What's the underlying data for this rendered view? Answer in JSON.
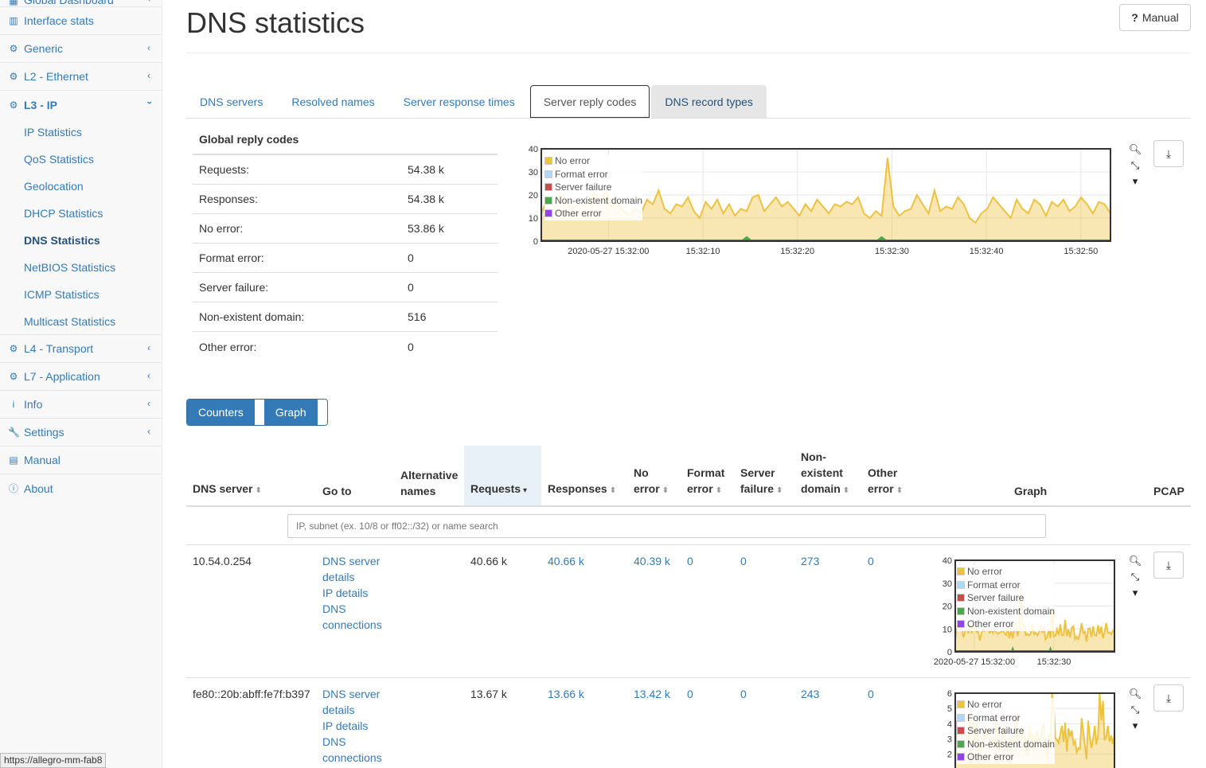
{
  "sidebar": {
    "top_partial": "Global Dashboard",
    "items": [
      {
        "label": "Interface stats",
        "icon": "bar-chart-icon"
      },
      {
        "label": "Generic",
        "icon": "gear-icon"
      },
      {
        "label": "L2 - Ethernet",
        "icon": "gear-icon"
      },
      {
        "label": "L3 - IP",
        "icon": "gear-icon"
      }
    ],
    "sub_items": [
      "IP Statistics",
      "QoS Statistics",
      "Geolocation",
      "DHCP Statistics",
      "DNS Statistics",
      "NetBIOS Statistics",
      "ICMP Statistics",
      "Multicast Statistics"
    ],
    "items_after": [
      {
        "label": "L4 - Transport",
        "icon": "gear-icon"
      },
      {
        "label": "L7 - Application",
        "icon": "gear-icon"
      },
      {
        "label": "Info",
        "icon": "info-icon"
      },
      {
        "label": "Settings",
        "icon": "wrench-icon"
      },
      {
        "label": "Manual",
        "icon": "book-icon"
      },
      {
        "label": "About",
        "icon": "info-circle-icon"
      }
    ]
  },
  "header": {
    "title": "DNS statistics",
    "manual_button": "Manual"
  },
  "tabs": [
    "DNS servers",
    "Resolved names",
    "Server response times",
    "Server reply codes",
    "DNS record types"
  ],
  "reply_codes": {
    "title": "Global reply codes",
    "rows": [
      {
        "label": "Requests:",
        "value": "54.38 k"
      },
      {
        "label": "Responses:",
        "value": "54.38 k"
      },
      {
        "label": "No error:",
        "value": "53.86 k"
      },
      {
        "label": "Format error:",
        "value": "0"
      },
      {
        "label": "Server failure:",
        "value": "0"
      },
      {
        "label": "Non-existent domain:",
        "value": "516"
      },
      {
        "label": "Other error:",
        "value": "0"
      }
    ]
  },
  "legend": [
    "No error",
    "Format error",
    "Server failure",
    "Non-existent domain",
    "Other error"
  ],
  "legend_colors": [
    "#edc240",
    "#afd8f8",
    "#cb4b4b",
    "#4da74d",
    "#9440ed"
  ],
  "main_chart": {
    "y_ticks": [
      "40",
      "30",
      "20",
      "10",
      "0"
    ],
    "x_ticks": [
      "2020-05-27 15:32:00",
      "15:32:10",
      "15:32:20",
      "15:32:30",
      "15:32:40",
      "15:32:50"
    ],
    "no_error": [
      12,
      18,
      16,
      20,
      19,
      14,
      15,
      17,
      16,
      21,
      18,
      22,
      15,
      17,
      13,
      11,
      14,
      12,
      18,
      16,
      22,
      14,
      12,
      16,
      15,
      19,
      13,
      10,
      17,
      14,
      18,
      12,
      16,
      11,
      14,
      13,
      19,
      20,
      13,
      16,
      19,
      15,
      17,
      14,
      11,
      16,
      13,
      18,
      15,
      12,
      16,
      15,
      17,
      16,
      19,
      12,
      10,
      13,
      11,
      36,
      15,
      11,
      13,
      14,
      20,
      16,
      12,
      22,
      13,
      15,
      14,
      19,
      16,
      10,
      8,
      12,
      14,
      19,
      16,
      13,
      10,
      18,
      14,
      12,
      18,
      16,
      11,
      17,
      15,
      18,
      13,
      15,
      19,
      16,
      12,
      17,
      16,
      12
    ],
    "non_existent": [
      0,
      0,
      0,
      0,
      0,
      0,
      0,
      0,
      0,
      0,
      0,
      0,
      0,
      0,
      0,
      0,
      0,
      0,
      0,
      0,
      0,
      0,
      0,
      0,
      0,
      0,
      0,
      0,
      0,
      0,
      0,
      0,
      0,
      0,
      0,
      2,
      0,
      0,
      0,
      0,
      0,
      0,
      0,
      0,
      0,
      0,
      0,
      0,
      0,
      0,
      0,
      0,
      0,
      0,
      0,
      0,
      0,
      0,
      2,
      0,
      0,
      0,
      0,
      0,
      0,
      0,
      0,
      0,
      0,
      0,
      0,
      0,
      0,
      0,
      0,
      0,
      0,
      0,
      0,
      0,
      0,
      0,
      0,
      0,
      0,
      0,
      0,
      0,
      0,
      0,
      0,
      0,
      0,
      0,
      0,
      0,
      0,
      0
    ]
  },
  "toggle": {
    "counters": "Counters",
    "graph": "Graph"
  },
  "table": {
    "headers": {
      "dns_server": "DNS server",
      "go_to": "Go to",
      "alt_names_1": "Alternative",
      "alt_names_2": "names",
      "requests": "Requests",
      "responses": "Responses",
      "no_error_1": "No",
      "no_error_2": "error",
      "format_error_1": "Format",
      "format_error_2": "error",
      "server_failure_1": "Server",
      "server_failure_2": "failure",
      "nonexistent_1": "Non-",
      "nonexistent_2": "existent",
      "nonexistent_3": "domain",
      "other_error_1": "Other",
      "other_error_2": "error",
      "graph": "Graph",
      "pcap": "PCAP"
    },
    "search_placeholder": "IP, subnet (ex. 10/8 or ff02::/32) or name search",
    "rows": [
      {
        "server": "10.54.0.254",
        "links": [
          "DNS server",
          "details",
          "IP details",
          "DNS",
          "connections"
        ],
        "requests": "40.66 k",
        "responses": "40.66 k",
        "no_error": "40.39 k",
        "format_error": "0",
        "server_failure": "0",
        "nonexistent": "273",
        "other_error": "0",
        "y_ticks": [
          "40",
          "30",
          "20",
          "10",
          "0"
        ],
        "x_ticks": [
          "2020-05-27 15:32:00",
          "15:32:30"
        ]
      },
      {
        "server": "fe80::20b:abff:fe7f:b397",
        "links": [
          "DNS server",
          "details",
          "IP details",
          "DNS",
          "connections"
        ],
        "requests": "13.67 k",
        "responses": "13.66 k",
        "no_error": "13.42 k",
        "format_error": "0",
        "server_failure": "0",
        "nonexistent": "243",
        "other_error": "0",
        "y_ticks": [
          "6",
          "5",
          "4",
          "3",
          "2"
        ]
      }
    ]
  },
  "status_url": "https://allegro-mm-fab8"
}
